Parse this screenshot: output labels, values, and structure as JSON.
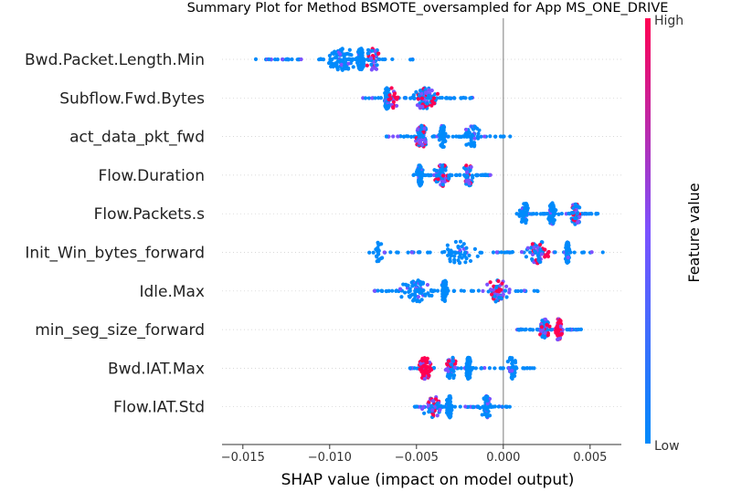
{
  "chart_data": {
    "type": "scatter",
    "title": "Summary Plot for Method BSMOTE_oversampled for App MS_ONE_DRIVE",
    "xlabel": "SHAP value (impact on model output)",
    "ylabel": "",
    "xlim": [
      -0.0162,
      0.0068
    ],
    "x_ticks": [
      -0.015,
      -0.01,
      -0.005,
      0.0,
      0.005
    ],
    "x_tick_labels": [
      "−0.015",
      "−0.010",
      "−0.005",
      "0.000",
      "0.005"
    ],
    "zero_line": 0.0,
    "grid": false,
    "colorbar": {
      "label": "Feature value",
      "high_label": "High",
      "low_label": "Low",
      "low_color": "#008afb",
      "mid_color": "#7c52ff",
      "high_color": "#ff0052"
    },
    "features": [
      {
        "name": "Bwd.Packet.Length.Min",
        "range": [
          -0.0145,
          -0.005
        ],
        "clusters": [
          {
            "x": -0.0082,
            "spread": 0.0004,
            "n": 90,
            "color": "low"
          },
          {
            "x": -0.0093,
            "spread": 0.0015,
            "n": 70,
            "color": "low"
          },
          {
            "x": -0.0075,
            "spread": 0.001,
            "n": 40,
            "color": "mixed"
          }
        ]
      },
      {
        "name": "Subflow.Fwd.Bytes",
        "range": [
          -0.0081,
          -0.0017
        ],
        "clusters": [
          {
            "x": -0.0067,
            "spread": 0.0003,
            "n": 70,
            "color": "low"
          },
          {
            "x": -0.0045,
            "spread": 0.0012,
            "n": 70,
            "color": "mixed"
          },
          {
            "x": -0.0063,
            "spread": 0.0006,
            "n": 20,
            "color": "high"
          }
        ]
      },
      {
        "name": "act_data_pkt_fwd",
        "range": [
          -0.0068,
          0.0004
        ],
        "clusters": [
          {
            "x": -0.0047,
            "spread": 0.0006,
            "n": 80,
            "color": "mixed"
          },
          {
            "x": -0.0018,
            "spread": 0.0008,
            "n": 40,
            "color": "low"
          },
          {
            "x": -0.0035,
            "spread": 0.0004,
            "n": 40,
            "color": "low"
          }
        ]
      },
      {
        "name": "Flow.Duration",
        "range": [
          -0.0052,
          -0.0007
        ],
        "clusters": [
          {
            "x": -0.0048,
            "spread": 0.0003,
            "n": 70,
            "color": "low"
          },
          {
            "x": -0.0035,
            "spread": 0.0008,
            "n": 60,
            "color": "mixed"
          },
          {
            "x": -0.002,
            "spread": 0.0006,
            "n": 40,
            "color": "mixed"
          }
        ]
      },
      {
        "name": "Flow.Packets.s",
        "range": [
          0.0005,
          0.0058
        ],
        "clusters": [
          {
            "x": 0.0028,
            "spread": 0.0003,
            "n": 70,
            "color": "low"
          },
          {
            "x": 0.0042,
            "spread": 0.0005,
            "n": 50,
            "color": "mixed"
          },
          {
            "x": 0.0012,
            "spread": 0.0006,
            "n": 40,
            "color": "low"
          }
        ]
      },
      {
        "name": "Init_Win_bytes_forward",
        "range": [
          -0.0078,
          0.0058
        ],
        "clusters": [
          {
            "x": 0.0037,
            "spread": 0.0002,
            "n": 90,
            "color": "low"
          },
          {
            "x": 0.002,
            "spread": 0.0012,
            "n": 60,
            "color": "mixed"
          },
          {
            "x": -0.0025,
            "spread": 0.002,
            "n": 40,
            "color": "low"
          },
          {
            "x": -0.0072,
            "spread": 0.0005,
            "n": 20,
            "color": "low"
          }
        ]
      },
      {
        "name": "Idle.Max",
        "range": [
          -0.0075,
          0.0025
        ],
        "clusters": [
          {
            "x": -0.0034,
            "spread": 0.0003,
            "n": 70,
            "color": "low"
          },
          {
            "x": -0.005,
            "spread": 0.0015,
            "n": 60,
            "color": "low"
          },
          {
            "x": -0.0003,
            "spread": 0.0012,
            "n": 60,
            "color": "mixed"
          }
        ]
      },
      {
        "name": "min_seg_size_forward",
        "range": [
          0.0008,
          0.0045
        ],
        "clusters": [
          {
            "x": 0.0032,
            "spread": 0.0003,
            "n": 60,
            "color": "high"
          },
          {
            "x": 0.0024,
            "spread": 0.0005,
            "n": 50,
            "color": "mixed"
          }
        ]
      },
      {
        "name": "Bwd.IAT.Max",
        "range": [
          -0.0057,
          0.0018
        ],
        "clusters": [
          {
            "x": -0.002,
            "spread": 0.0003,
            "n": 70,
            "color": "low"
          },
          {
            "x": -0.0045,
            "spread": 0.0007,
            "n": 60,
            "color": "high"
          },
          {
            "x": -0.003,
            "spread": 0.0008,
            "n": 40,
            "color": "mixed"
          },
          {
            "x": 0.0005,
            "spread": 0.0006,
            "n": 30,
            "color": "low"
          }
        ]
      },
      {
        "name": "Flow.IAT.Std",
        "range": [
          -0.0058,
          0.0005
        ],
        "clusters": [
          {
            "x": -0.0031,
            "spread": 0.0003,
            "n": 70,
            "color": "low"
          },
          {
            "x": -0.004,
            "spread": 0.001,
            "n": 50,
            "color": "mixed"
          },
          {
            "x": -0.001,
            "spread": 0.0006,
            "n": 40,
            "color": "low"
          }
        ]
      }
    ]
  }
}
